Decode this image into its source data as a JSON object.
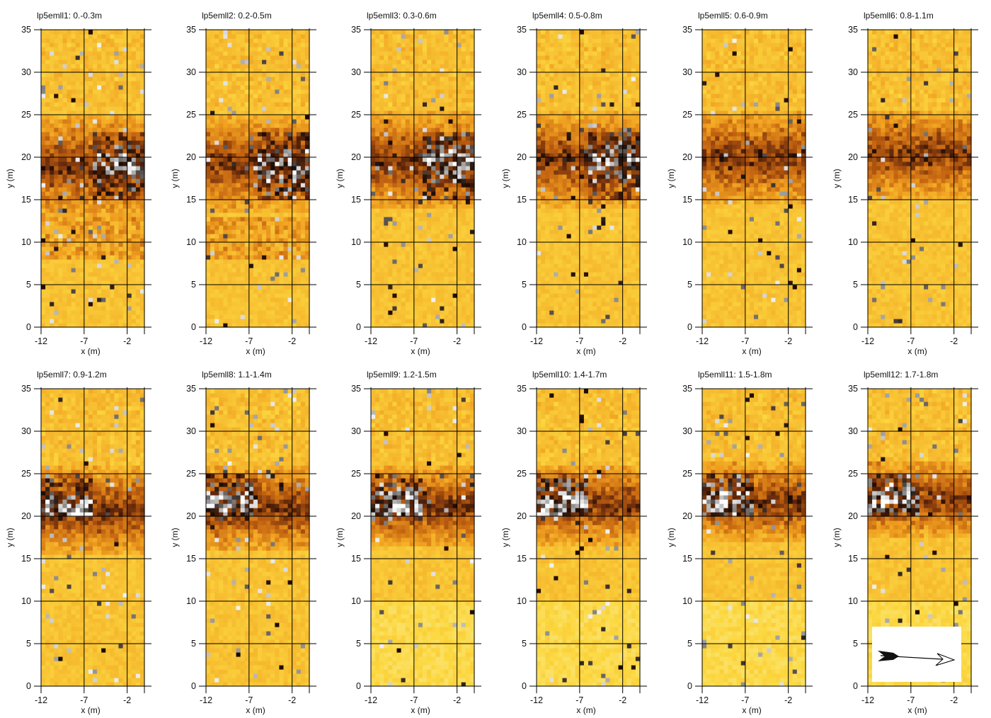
{
  "chart_data": {
    "type": "heatmap",
    "xlabel": "x (m)",
    "ylabel": "y (m)",
    "xlim": [
      -12,
      0
    ],
    "ylim": [
      0,
      35
    ],
    "x_ticks": [
      -12,
      -7,
      -2
    ],
    "y_ticks": [
      0,
      5,
      10,
      15,
      20,
      25,
      30,
      35
    ],
    "grid": true,
    "colors": {
      "pale": "#f7f2b8",
      "yellow": "#fcd840",
      "orange": "#f0a020",
      "dark_orange": "#c06010",
      "brown": "#6a2c0c",
      "black": "#1a0a04",
      "gray": "#8a8a8a",
      "light_gray": "#d8d8d8",
      "white": "#ffffff"
    },
    "panels": [
      {
        "title": "lp5emll1: 0.-0.3m",
        "depth_from_m": 0.0,
        "depth_to_m": 0.3
      },
      {
        "title": "lp5emll2: 0.2-0.5m",
        "depth_from_m": 0.2,
        "depth_to_m": 0.5
      },
      {
        "title": "lp5emll3: 0.3-0.6m",
        "depth_from_m": 0.3,
        "depth_to_m": 0.6
      },
      {
        "title": "lp5emll4: 0.5-0.8m",
        "depth_from_m": 0.5,
        "depth_to_m": 0.8
      },
      {
        "title": "lp5emll5: 0.6-0.9m",
        "depth_from_m": 0.6,
        "depth_to_m": 0.9
      },
      {
        "title": "lp5emll6: 0.8-1.1m",
        "depth_from_m": 0.8,
        "depth_to_m": 1.1
      },
      {
        "title": "lp5emll7: 0.9-1.2m",
        "depth_from_m": 0.9,
        "depth_to_m": 1.2
      },
      {
        "title": "lp5emll8: 1.1-1.4m",
        "depth_from_m": 1.1,
        "depth_to_m": 1.4
      },
      {
        "title": "lp5emll9: 1.2-1.5m",
        "depth_from_m": 1.2,
        "depth_to_m": 1.5
      },
      {
        "title": "lp5emll10: 1.4-1.7m",
        "depth_from_m": 1.4,
        "depth_to_m": 1.7
      },
      {
        "title": "lp5emll11: 1.5-1.8m",
        "depth_from_m": 1.5,
        "depth_to_m": 1.8
      },
      {
        "title": "lp5emll12: 1.7-1.8m",
        "depth_from_m": 1.7,
        "depth_to_m": 1.8
      }
    ],
    "north_arrow_panel": 11
  }
}
